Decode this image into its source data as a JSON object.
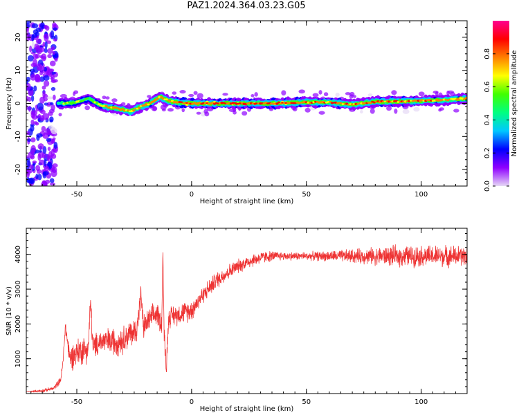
{
  "title": "PAZ1.2024.364.03.23.G05",
  "chart_data": [
    {
      "type": "heatmap",
      "xlabel": "Height of straight line (km)",
      "ylabel": "Frequency (Hz)",
      "xlim": [
        -72,
        120
      ],
      "ylim": [
        -25,
        25
      ],
      "xticks": [
        -50,
        0,
        50,
        100
      ],
      "yticks": [
        -20,
        -10,
        0,
        10,
        20
      ],
      "colorbar": {
        "label": "Normalized spectral amplitude",
        "range": [
          0,
          1
        ],
        "ticks": [
          0.0,
          0.2,
          0.4,
          0.6,
          0.8
        ],
        "colors": [
          "#e6d8f5",
          "#8f00ff",
          "#0000ff",
          "#00c8ff",
          "#00ff80",
          "#40ff00",
          "#ffff00",
          "#ff8000",
          "#ff0000",
          "#ff0090"
        ]
      },
      "ridge_x": [
        -60,
        -55,
        -50,
        -45,
        -40,
        -35,
        -30,
        -27,
        -22,
        -18,
        -14,
        -10,
        -5,
        0,
        10,
        20,
        30,
        40,
        50,
        60,
        70,
        80,
        90,
        100,
        110,
        120
      ],
      "ridge_freq": [
        0,
        0,
        0.3,
        1.5,
        -0.5,
        -1.3,
        -1.8,
        -2.5,
        -1.0,
        0,
        2.0,
        0.8,
        0.2,
        0,
        0,
        0,
        0,
        0.1,
        0.4,
        0.3,
        -0.3,
        0.5,
        0.6,
        0.8,
        1.0,
        1.5
      ],
      "ridge_amplitude": [
        0.4,
        0.7,
        0.7,
        0.6,
        0.75,
        0.85,
        0.9,
        0.9,
        0.85,
        0.85,
        0.85,
        0.9,
        0.95,
        0.95,
        0.95,
        0.95,
        0.95,
        0.95,
        0.9,
        0.9,
        0.9,
        0.9,
        0.9,
        0.9,
        0.85,
        0.8
      ]
    },
    {
      "type": "line",
      "xlabel": "Height of straight line (km)",
      "ylabel": "SNR (10 * v/v)",
      "xlim": [
        -72,
        120
      ],
      "ylim": [
        0,
        4750
      ],
      "xticks": [
        -50,
        0,
        50,
        100
      ],
      "yticks": [
        1000,
        2000,
        3000,
        4000
      ],
      "series_color": "#ee3333",
      "x": [
        -72,
        -65,
        -60,
        -57,
        -56,
        -55,
        -53,
        -50,
        -45,
        -44,
        -43,
        -40,
        -35,
        -32,
        -30,
        -27,
        -24,
        -22,
        -21,
        -18,
        -15,
        -13,
        -12.5,
        -12,
        -11,
        -10,
        -5,
        0,
        5,
        10,
        15,
        20,
        25,
        30,
        35,
        40,
        50,
        60,
        70,
        80,
        90,
        100,
        110,
        120
      ],
      "values": [
        50,
        80,
        150,
        400,
        900,
        1950,
        1000,
        1200,
        1300,
        2650,
        1300,
        1500,
        1500,
        1500,
        1550,
        1700,
        1800,
        2850,
        1900,
        2150,
        2300,
        2000,
        4150,
        1800,
        700,
        2200,
        2300,
        2400,
        2850,
        3200,
        3450,
        3650,
        3800,
        3900,
        3950,
        3950,
        3950,
        3950,
        3950,
        3950,
        3950,
        3950,
        3950,
        3950
      ],
      "noise": [
        0,
        50,
        60,
        100,
        150,
        200,
        350,
        400,
        400,
        350,
        350,
        350,
        400,
        400,
        400,
        400,
        400,
        300,
        350,
        350,
        350,
        300,
        0,
        300,
        300,
        300,
        300,
        300,
        250,
        250,
        230,
        200,
        200,
        180,
        150,
        120,
        120,
        150,
        200,
        250,
        300,
        300,
        300,
        300
      ]
    }
  ]
}
